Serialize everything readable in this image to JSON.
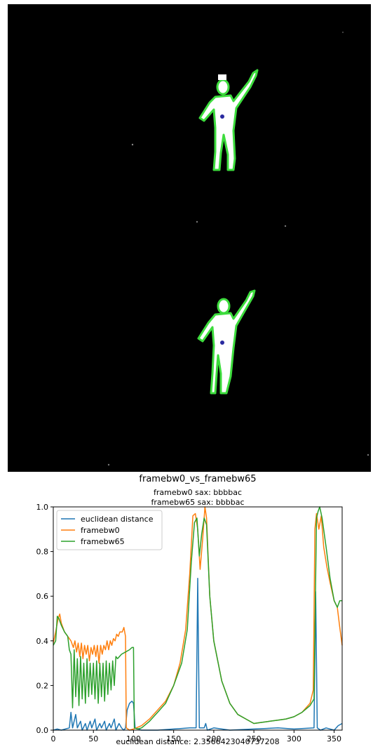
{
  "chart_data": {
    "type": "line",
    "title": "framebw0_vs_framebw65",
    "subtitle": [
      "framebw0 sax: bbbbac",
      "framebw65 sax: bbbbac"
    ],
    "xlabel": "euclidean distance: 2.3566423040737208",
    "ylabel": "",
    "xlim": [
      0,
      360
    ],
    "ylim": [
      0,
      1.0
    ],
    "x_ticks": [
      0,
      50,
      100,
      150,
      200,
      250,
      300,
      350
    ],
    "y_ticks": [
      0.0,
      0.2,
      0.4,
      0.6,
      0.8,
      1.0
    ],
    "grid": false,
    "legend_position": "top-left",
    "series": [
      {
        "name": "euclidean distance",
        "color": "#1f77b4",
        "points": [
          [
            0,
            0.0
          ],
          [
            5,
            0.005
          ],
          [
            10,
            0.0
          ],
          [
            15,
            0.005
          ],
          [
            20,
            0.01
          ],
          [
            22,
            0.08
          ],
          [
            24,
            0.01
          ],
          [
            28,
            0.07
          ],
          [
            30,
            0.01
          ],
          [
            34,
            0.04
          ],
          [
            36,
            0.0
          ],
          [
            40,
            0.03
          ],
          [
            42,
            0.0
          ],
          [
            46,
            0.04
          ],
          [
            48,
            0.01
          ],
          [
            52,
            0.05
          ],
          [
            54,
            0.0
          ],
          [
            58,
            0.03
          ],
          [
            60,
            0.01
          ],
          [
            64,
            0.04
          ],
          [
            66,
            0.0
          ],
          [
            70,
            0.03
          ],
          [
            72,
            0.01
          ],
          [
            76,
            0.05
          ],
          [
            78,
            0.0
          ],
          [
            82,
            0.03
          ],
          [
            85,
            0.01
          ],
          [
            88,
            0.0
          ],
          [
            90,
            0.01
          ],
          [
            92,
            0.09
          ],
          [
            95,
            0.12
          ],
          [
            98,
            0.13
          ],
          [
            100,
            0.12
          ],
          [
            102,
            0.01
          ],
          [
            110,
            0.0
          ],
          [
            130,
            0.0
          ],
          [
            150,
            0.005
          ],
          [
            170,
            0.01
          ],
          [
            178,
            0.01
          ],
          [
            180,
            0.68
          ],
          [
            182,
            0.01
          ],
          [
            188,
            0.01
          ],
          [
            190,
            0.03
          ],
          [
            192,
            0.0
          ],
          [
            200,
            0.01
          ],
          [
            220,
            0.0
          ],
          [
            250,
            0.005
          ],
          [
            280,
            0.01
          ],
          [
            300,
            0.005
          ],
          [
            325,
            0.01
          ],
          [
            327,
            0.62
          ],
          [
            329,
            0.01
          ],
          [
            333,
            0.0
          ],
          [
            340,
            0.01
          ],
          [
            350,
            0.0
          ],
          [
            355,
            0.02
          ],
          [
            360,
            0.03
          ]
        ]
      },
      {
        "name": "framebw0",
        "color": "#ff7f0e",
        "points": [
          [
            0,
            0.39
          ],
          [
            3,
            0.44
          ],
          [
            6,
            0.5
          ],
          [
            8,
            0.52
          ],
          [
            10,
            0.48
          ],
          [
            14,
            0.44
          ],
          [
            18,
            0.42
          ],
          [
            22,
            0.4
          ],
          [
            25,
            0.37
          ],
          [
            27,
            0.4
          ],
          [
            29,
            0.35
          ],
          [
            31,
            0.39
          ],
          [
            33,
            0.33
          ],
          [
            35,
            0.39
          ],
          [
            37,
            0.32
          ],
          [
            39,
            0.38
          ],
          [
            41,
            0.34
          ],
          [
            43,
            0.38
          ],
          [
            45,
            0.31
          ],
          [
            47,
            0.37
          ],
          [
            49,
            0.34
          ],
          [
            51,
            0.38
          ],
          [
            53,
            0.33
          ],
          [
            55,
            0.38
          ],
          [
            57,
            0.3
          ],
          [
            59,
            0.38
          ],
          [
            61,
            0.34
          ],
          [
            63,
            0.38
          ],
          [
            65,
            0.36
          ],
          [
            67,
            0.4
          ],
          [
            69,
            0.36
          ],
          [
            71,
            0.4
          ],
          [
            73,
            0.38
          ],
          [
            75,
            0.41
          ],
          [
            77,
            0.4
          ],
          [
            79,
            0.43
          ],
          [
            81,
            0.42
          ],
          [
            83,
            0.44
          ],
          [
            86,
            0.44
          ],
          [
            88,
            0.46
          ],
          [
            90,
            0.42
          ],
          [
            91,
            0.01
          ],
          [
            95,
            0.0
          ],
          [
            100,
            0.005
          ],
          [
            110,
            0.02
          ],
          [
            120,
            0.05
          ],
          [
            130,
            0.09
          ],
          [
            140,
            0.13
          ],
          [
            150,
            0.2
          ],
          [
            158,
            0.3
          ],
          [
            165,
            0.45
          ],
          [
            170,
            0.7
          ],
          [
            174,
            0.96
          ],
          [
            177,
            0.97
          ],
          [
            180,
            0.9
          ],
          [
            183,
            0.72
          ],
          [
            186,
            0.85
          ],
          [
            189,
            1.0
          ],
          [
            191,
            0.95
          ],
          [
            195,
            0.6
          ],
          [
            200,
            0.4
          ],
          [
            210,
            0.22
          ],
          [
            220,
            0.12
          ],
          [
            230,
            0.07
          ],
          [
            240,
            0.05
          ],
          [
            250,
            0.03
          ],
          [
            260,
            0.035
          ],
          [
            270,
            0.04
          ],
          [
            280,
            0.045
          ],
          [
            290,
            0.05
          ],
          [
            300,
            0.06
          ],
          [
            310,
            0.08
          ],
          [
            320,
            0.12
          ],
          [
            324,
            0.18
          ],
          [
            326,
            0.9
          ],
          [
            328,
            0.97
          ],
          [
            331,
            0.9
          ],
          [
            334,
            0.96
          ],
          [
            337,
            0.82
          ],
          [
            341,
            0.73
          ],
          [
            345,
            0.66
          ],
          [
            350,
            0.58
          ],
          [
            354,
            0.55
          ],
          [
            357,
            0.46
          ],
          [
            360,
            0.38
          ]
        ]
      },
      {
        "name": "framebw65",
        "color": "#2ca02c",
        "points": [
          [
            0,
            0.38
          ],
          [
            3,
            0.4
          ],
          [
            5,
            0.51
          ],
          [
            7,
            0.5
          ],
          [
            10,
            0.47
          ],
          [
            14,
            0.44
          ],
          [
            18,
            0.42
          ],
          [
            20,
            0.36
          ],
          [
            22,
            0.34
          ],
          [
            24,
            0.1
          ],
          [
            26,
            0.36
          ],
          [
            28,
            0.15
          ],
          [
            30,
            0.32
          ],
          [
            32,
            0.11
          ],
          [
            34,
            0.33
          ],
          [
            36,
            0.14
          ],
          [
            38,
            0.3
          ],
          [
            40,
            0.12
          ],
          [
            42,
            0.32
          ],
          [
            44,
            0.15
          ],
          [
            46,
            0.3
          ],
          [
            48,
            0.16
          ],
          [
            50,
            0.3
          ],
          [
            52,
            0.14
          ],
          [
            54,
            0.31
          ],
          [
            56,
            0.12
          ],
          [
            58,
            0.3
          ],
          [
            60,
            0.15
          ],
          [
            62,
            0.3
          ],
          [
            64,
            0.13
          ],
          [
            66,
            0.31
          ],
          [
            68,
            0.16
          ],
          [
            70,
            0.3
          ],
          [
            72,
            0.18
          ],
          [
            74,
            0.31
          ],
          [
            76,
            0.2
          ],
          [
            78,
            0.33
          ],
          [
            80,
            0.32
          ],
          [
            85,
            0.34
          ],
          [
            90,
            0.35
          ],
          [
            95,
            0.36
          ],
          [
            98,
            0.37
          ],
          [
            100,
            0.37
          ],
          [
            101,
            0.01
          ],
          [
            105,
            0.005
          ],
          [
            110,
            0.01
          ],
          [
            120,
            0.04
          ],
          [
            130,
            0.08
          ],
          [
            140,
            0.12
          ],
          [
            150,
            0.2
          ],
          [
            160,
            0.3
          ],
          [
            167,
            0.45
          ],
          [
            172,
            0.75
          ],
          [
            176,
            0.93
          ],
          [
            179,
            0.95
          ],
          [
            182,
            0.78
          ],
          [
            185,
            0.88
          ],
          [
            188,
            0.95
          ],
          [
            191,
            0.92
          ],
          [
            195,
            0.6
          ],
          [
            200,
            0.4
          ],
          [
            210,
            0.22
          ],
          [
            220,
            0.12
          ],
          [
            230,
            0.07
          ],
          [
            240,
            0.05
          ],
          [
            250,
            0.03
          ],
          [
            260,
            0.035
          ],
          [
            270,
            0.04
          ],
          [
            280,
            0.045
          ],
          [
            290,
            0.05
          ],
          [
            300,
            0.06
          ],
          [
            310,
            0.08
          ],
          [
            320,
            0.11
          ],
          [
            325,
            0.14
          ],
          [
            328,
            0.95
          ],
          [
            330,
            0.98
          ],
          [
            332,
            1.0
          ],
          [
            335,
            0.95
          ],
          [
            340,
            0.82
          ],
          [
            345,
            0.68
          ],
          [
            350,
            0.58
          ],
          [
            354,
            0.55
          ],
          [
            357,
            0.58
          ],
          [
            360,
            0.58
          ]
        ]
      }
    ]
  }
}
